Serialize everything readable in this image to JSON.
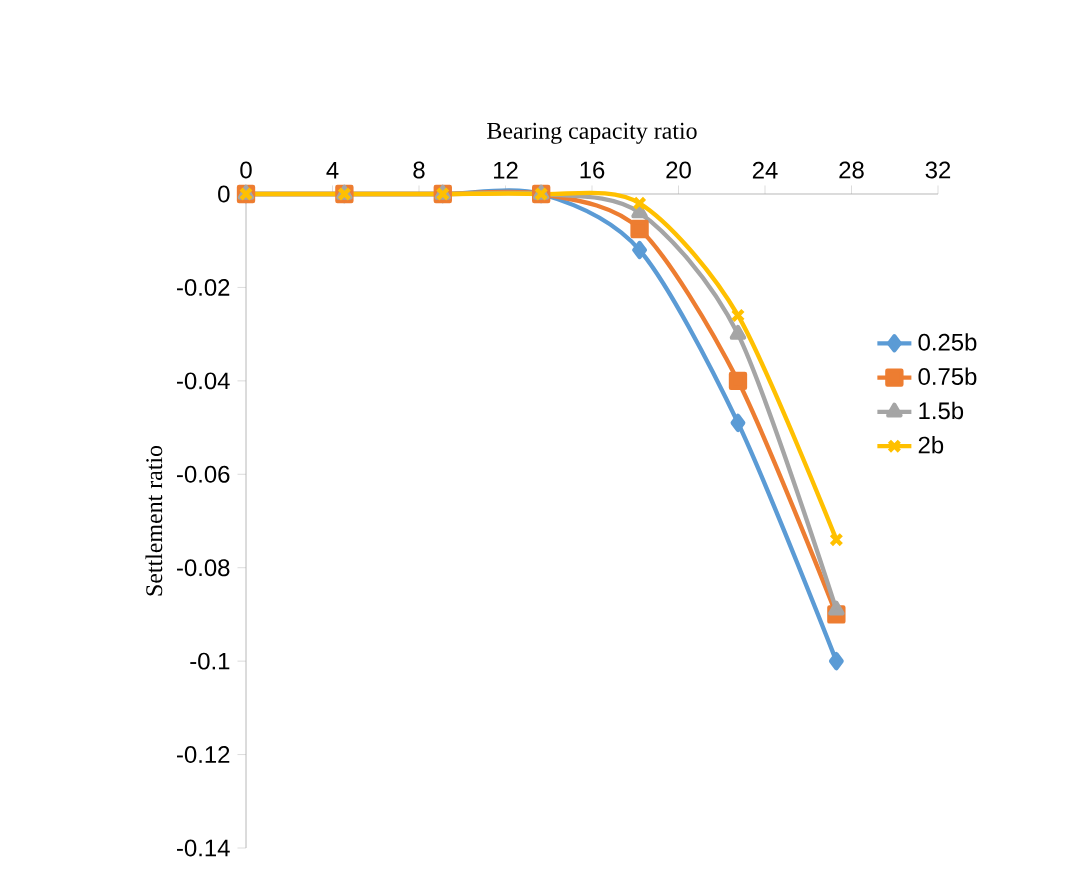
{
  "chart_data": {
    "type": "line",
    "xlabel": "Bearing capacity ratio",
    "ylabel": "Settlement ratio",
    "x": [
      0,
      4.55,
      9.1,
      13.65,
      18.2,
      22.75,
      27.3
    ],
    "series": [
      {
        "name": "0.25b",
        "color": "#5b9bd5",
        "marker": "diamond",
        "values": [
          0,
          0,
          0,
          0,
          -0.012,
          -0.049,
          -0.1
        ]
      },
      {
        "name": "0.75b",
        "color": "#ed7d31",
        "marker": "square",
        "values": [
          0,
          0,
          0,
          0,
          -0.0075,
          -0.04,
          -0.09
        ]
      },
      {
        "name": "1.5b",
        "color": "#a5a5a5",
        "marker": "triangle",
        "values": [
          0,
          0,
          0,
          0,
          -0.004,
          -0.03,
          -0.089
        ]
      },
      {
        "name": "2b",
        "color": "#ffc000",
        "marker": "cross",
        "values": [
          0,
          0,
          0,
          0,
          -0.002,
          -0.026,
          -0.074
        ]
      }
    ],
    "xlim": [
      0,
      32
    ],
    "xticks": [
      0,
      4,
      8,
      12,
      16,
      20,
      24,
      28,
      32
    ],
    "ylim": [
      -0.14,
      0
    ],
    "yticks": [
      -0.14,
      -0.12,
      -0.1,
      -0.08,
      -0.06,
      -0.04,
      -0.02,
      0
    ],
    "grid": false,
    "legend": "right",
    "line_style": "solid"
  }
}
